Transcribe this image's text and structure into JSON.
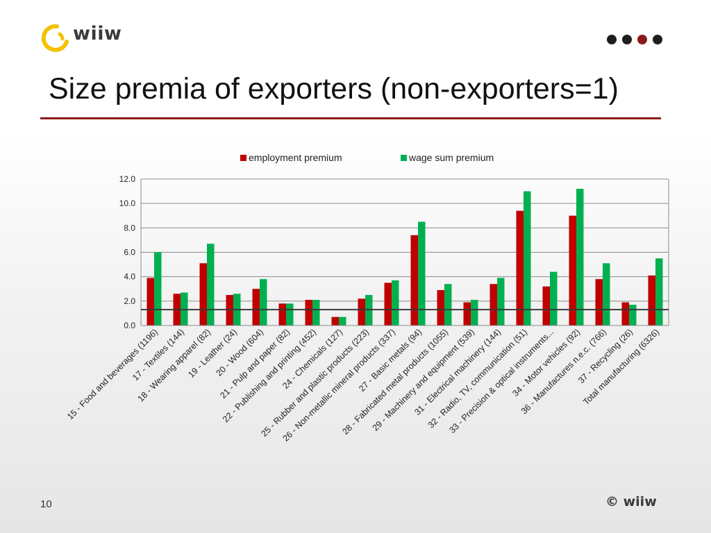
{
  "slide": {
    "logo_text": "wiiw",
    "title": "Size premia of exporters (non-exporters=1)",
    "page_number": "10",
    "copyright": "© wiiw",
    "nav_dots": 4,
    "nav_active_index": 2,
    "colors": {
      "accent": "#8b1a1a",
      "employment": "#c00000",
      "wage": "#00b050",
      "logo": "#f2c200"
    }
  },
  "chart_data": {
    "type": "bar",
    "title": "",
    "xlabel": "",
    "ylabel": "",
    "ylim": [
      0,
      12
    ],
    "yticks": [
      "0.0",
      "2.0",
      "4.0",
      "6.0",
      "8.0",
      "10.0",
      "12.0"
    ],
    "grid": true,
    "legend_position": "top",
    "reference_line": 1.3,
    "categories": [
      "15 - Food and beverages (1196)",
      "17 - Textiles (144)",
      "18 - Wearing apparel (82)",
      "19 - Leather (24)",
      "20 - Wood (604)",
      "21 - Pulp and paper (82)",
      "22 - Publishing and printing (452)",
      "24 - Chemicals  (127)",
      "25 - Rubber and plastic products (223)",
      "26 - Non-metallic mineral products (337)",
      "27 - Basic metals (94)",
      "28 - Fabricated metal products (1055)",
      "29 - Machinery and equipment (539)",
      "31 - Electrical machinery  (144)",
      "32 - Radio, TV, communication (51)",
      "33 - Precision & optical instruments...",
      "34 - Motor vehicles (92)",
      "36 - Manufactures n.e.c. (766)",
      "37 - Recycling (26)",
      "Total manufacturing (6326)"
    ],
    "series": [
      {
        "name": "employment premium",
        "color": "#c00000",
        "values": [
          3.9,
          2.6,
          5.1,
          2.5,
          3.0,
          1.8,
          2.1,
          0.7,
          2.2,
          3.5,
          7.4,
          2.9,
          1.9,
          3.4,
          9.4,
          3.2,
          9.0,
          3.8,
          1.9,
          4.1
        ]
      },
      {
        "name": "wage sum premium",
        "color": "#00b050",
        "values": [
          6.0,
          2.7,
          6.7,
          2.6,
          3.8,
          1.8,
          2.1,
          0.7,
          2.5,
          3.7,
          8.5,
          3.4,
          2.1,
          3.9,
          11.0,
          4.4,
          11.2,
          5.1,
          1.7,
          5.5
        ]
      }
    ]
  }
}
